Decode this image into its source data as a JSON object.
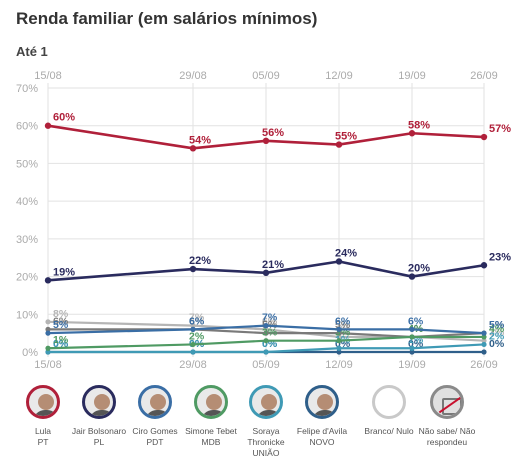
{
  "header": {
    "title": "Renda familiar (em salários mínimos)",
    "subtitle": "Até 1"
  },
  "chart_data": {
    "type": "line",
    "title": "Renda familiar (em salários mínimos)",
    "subtitle": "Até 1",
    "x": [
      "15/08",
      "29/08",
      "05/09",
      "12/09",
      "19/09",
      "26/09"
    ],
    "ylim": [
      0,
      70
    ],
    "yticks": [
      0,
      10,
      20,
      30,
      40,
      50,
      60,
      70
    ],
    "ytick_labels": [
      "0%",
      "10%",
      "20%",
      "30%",
      "40%",
      "50%",
      "60%",
      "70%"
    ],
    "grid": true,
    "series": [
      {
        "name": "Lula",
        "color": "#b0203a",
        "values": [
          60,
          54,
          56,
          55,
          58,
          57
        ],
        "labels": [
          "60%",
          "54%",
          "56%",
          "55%",
          "58%",
          "57%"
        ],
        "show_labels": true
      },
      {
        "name": "Jair Bolsonaro",
        "color": "#2a2b5e",
        "values": [
          19,
          22,
          21,
          24,
          20,
          23
        ],
        "labels": [
          "19%",
          "22%",
          "21%",
          "24%",
          "20%",
          "23%"
        ],
        "show_labels": true
      },
      {
        "name": "Ciro Gomes",
        "color": "#3a6ea5",
        "values": [
          5,
          6,
          7,
          6,
          6,
          5
        ],
        "labels": [
          "5%",
          "6%",
          "7%",
          "6%",
          "6%",
          "5%"
        ],
        "show_labels": true
      },
      {
        "name": "Simone Tebet",
        "color": "#4f9a63",
        "values": [
          1,
          2,
          3,
          3,
          4,
          4
        ],
        "labels": [
          "1%",
          "2%",
          "3%",
          "3%",
          "4%",
          "4%"
        ],
        "show_labels": true
      },
      {
        "name": "Soraya Thronicke",
        "color": "#3f9ab5",
        "values": [
          0,
          0,
          0,
          1,
          1,
          2
        ],
        "labels": [
          "0%",
          "0%",
          "0%",
          "1%",
          "1%",
          "2%"
        ],
        "show_labels": true
      },
      {
        "name": "Felipe d'Avila",
        "color": "#2f5f8a",
        "values": [
          0,
          0,
          0,
          0,
          0,
          0
        ],
        "labels": [
          "0%",
          "0%",
          "0%",
          "0%",
          "0%",
          "0%"
        ],
        "show_labels": true
      },
      {
        "name": "Branco/ Nulo",
        "color": "#b5b5b5",
        "values": [
          8,
          7,
          6,
          4,
          4,
          3
        ],
        "labels": [
          "8%",
          "7%",
          "6%",
          "4%",
          "4%",
          "3%"
        ],
        "show_labels": true
      },
      {
        "name": "Não sabe/ Não respondeu",
        "color": "#7a7a7a",
        "values": [
          6,
          6,
          5,
          5,
          4,
          5
        ],
        "labels": [
          "6%",
          "6%",
          "5%",
          "5%",
          "4%",
          "5%"
        ],
        "show_labels": true
      }
    ]
  },
  "legend": [
    {
      "name": "Lula",
      "party": "PT",
      "ring_color": "#b0203a",
      "icon": "candidate-photo"
    },
    {
      "name": "Jair Bolsonaro",
      "party": "PL",
      "ring_color": "#2a2b5e",
      "icon": "candidate-photo"
    },
    {
      "name": "Ciro Gomes",
      "party": "PDT",
      "ring_color": "#3a6ea5",
      "icon": "candidate-photo"
    },
    {
      "name": "Simone Tebet",
      "party": "MDB",
      "ring_color": "#4f9a63",
      "icon": "candidate-photo"
    },
    {
      "name": "Soraya Thronicke",
      "party": "UNIÃO",
      "ring_color": "#3f9ab5",
      "icon": "candidate-photo"
    },
    {
      "name": "Felipe d'Avila",
      "party": "NOVO",
      "ring_color": "#2f5f8a",
      "icon": "candidate-photo"
    },
    {
      "name": "Branco/ Nulo",
      "party": "",
      "ring_color": "#c9c9c9",
      "icon": "blank-circle"
    },
    {
      "name": "Não sabe/ Não respondeu",
      "party": "",
      "ring_color": "#8a8a8a",
      "icon": "crossed-box"
    }
  ]
}
